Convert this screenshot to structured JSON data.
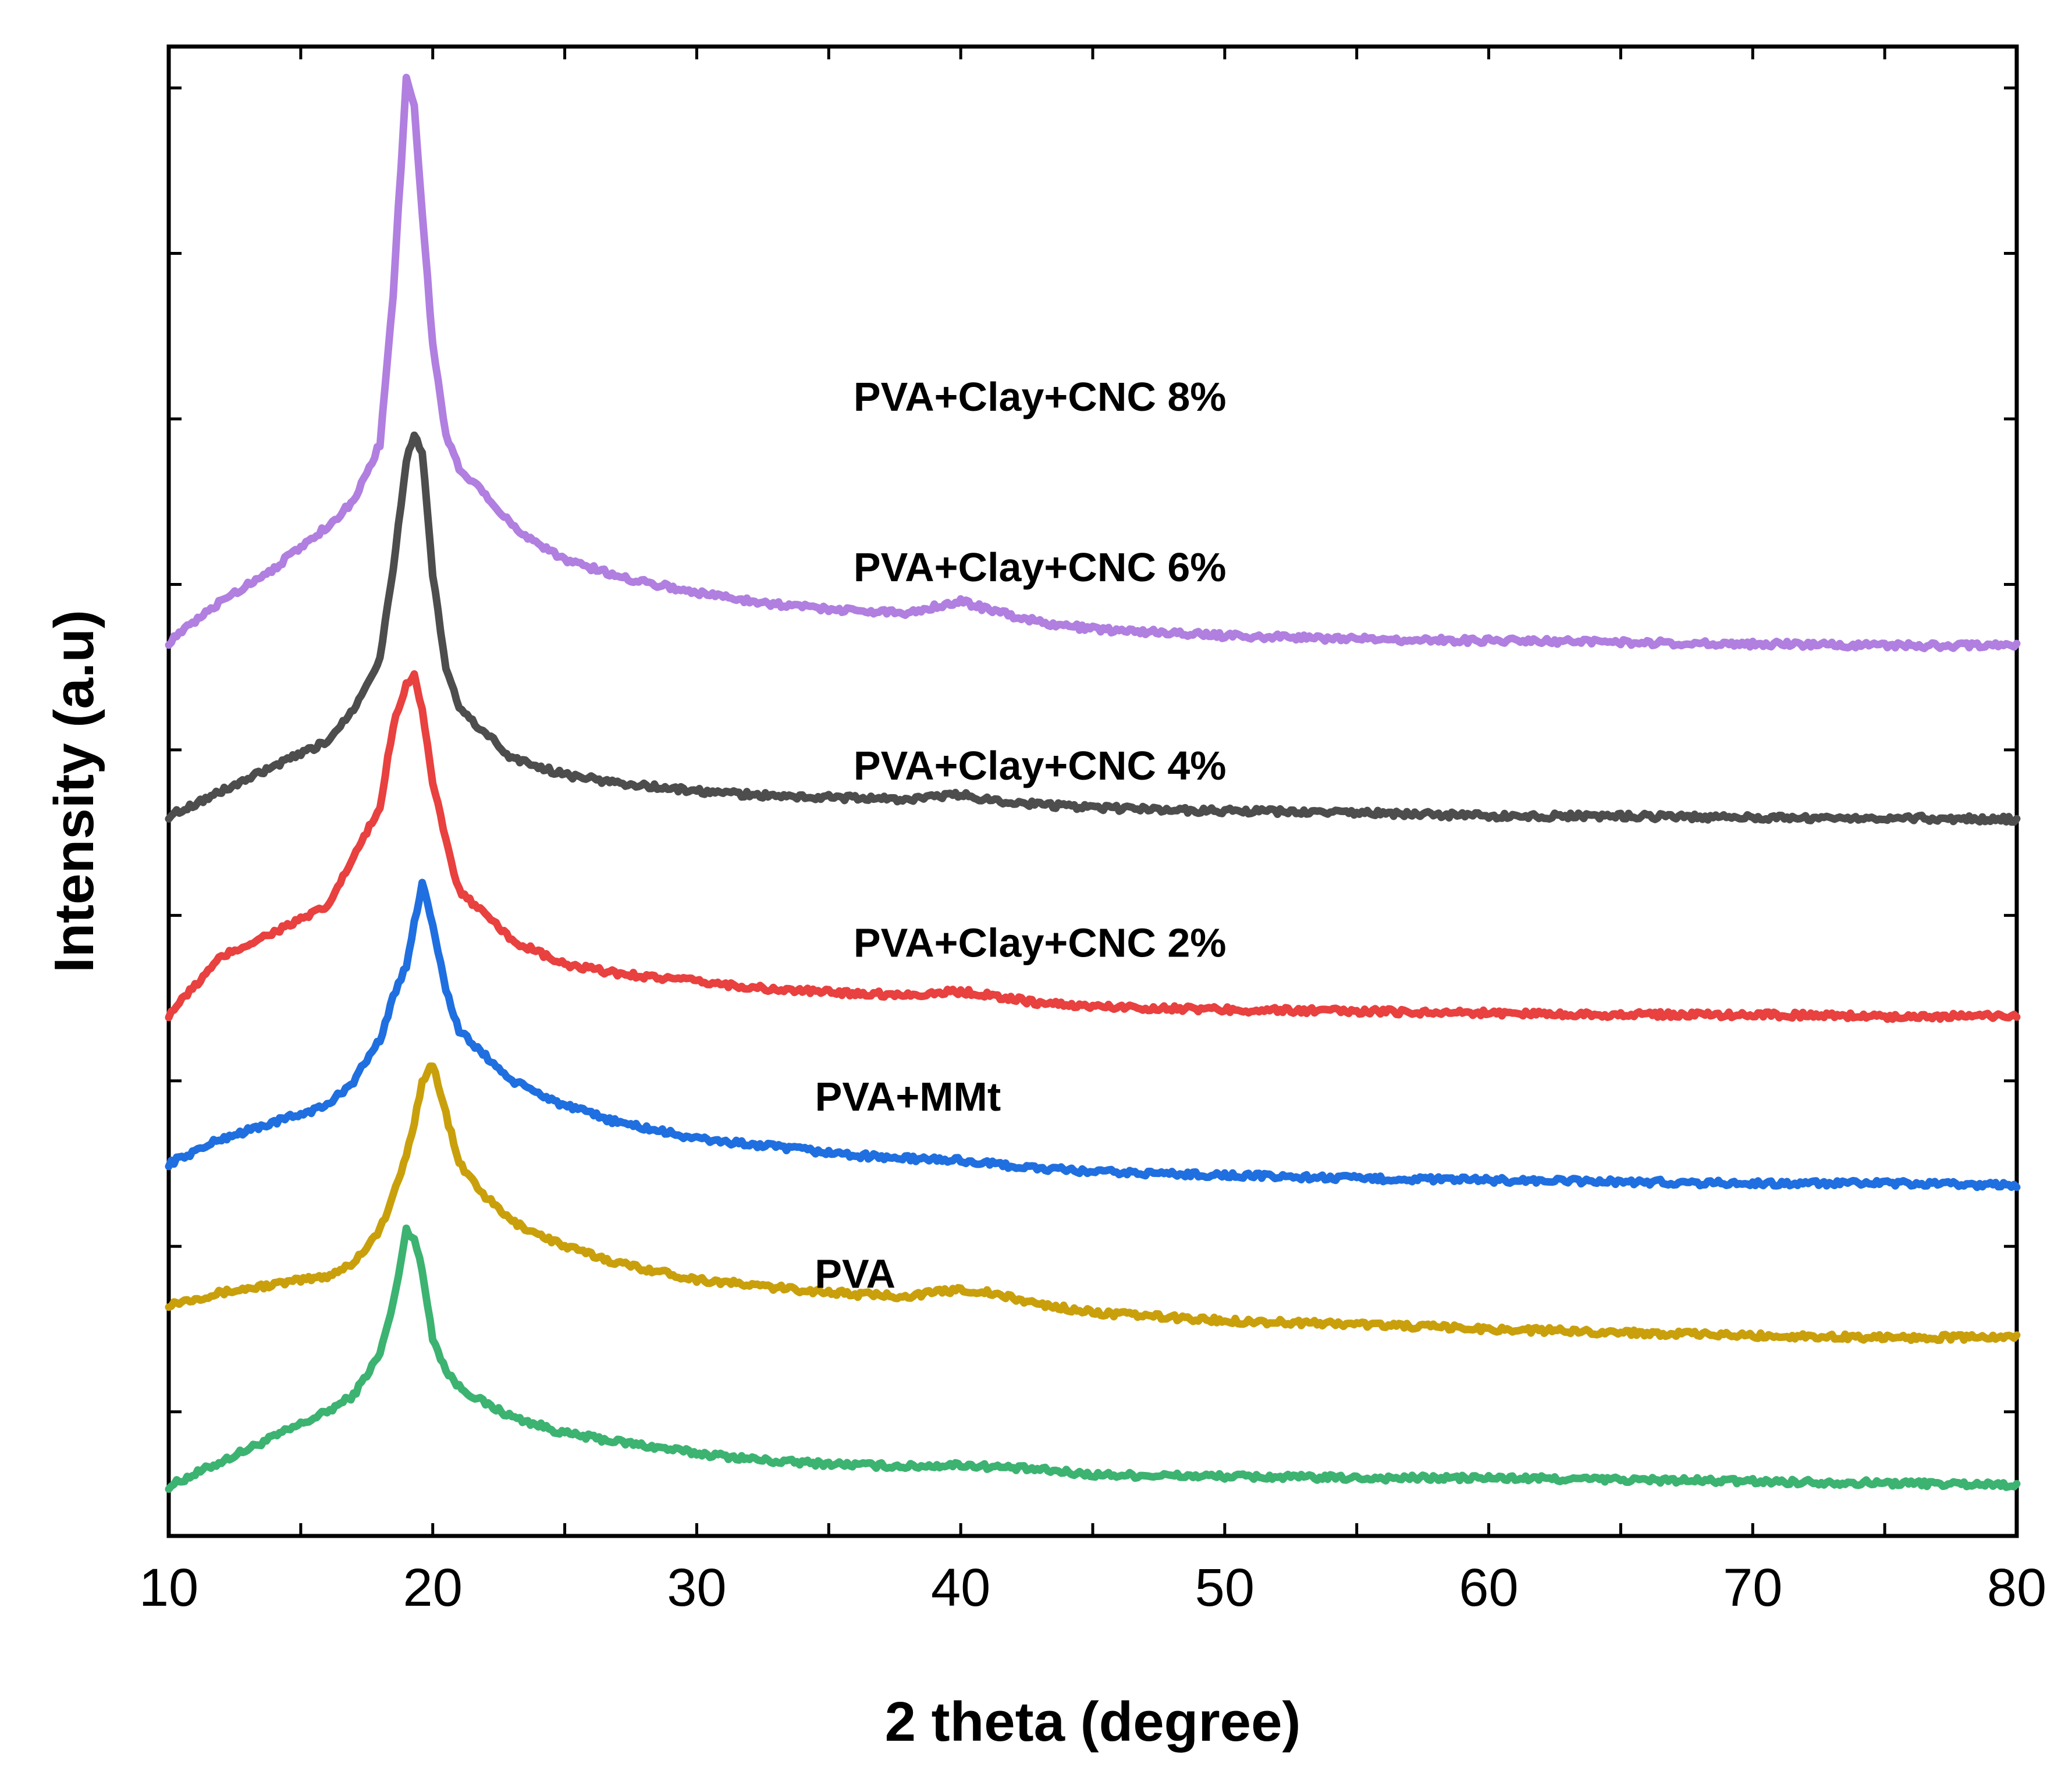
{
  "chart_data": {
    "type": "line",
    "xlabel": "2 theta (degree)",
    "ylabel": "Intensity (a.u)",
    "xlim": [
      10,
      80
    ],
    "ylim": [
      0,
      9
    ],
    "x_ticks": [
      10,
      20,
      30,
      40,
      50,
      60,
      70,
      80
    ],
    "y_minor_ticks": [
      0.75,
      1.75,
      2.75,
      3.75,
      4.75,
      5.75,
      6.75,
      7.75,
      8.75
    ],
    "y_tick_labels_shown": false,
    "x": [
      10,
      12,
      14,
      16,
      17,
      18,
      18.5,
      19,
      19.3,
      19.6,
      20,
      20.5,
      21,
      22,
      23,
      25,
      27,
      30,
      33,
      36,
      38,
      40,
      41,
      43,
      45,
      50,
      55,
      60,
      65,
      70,
      75,
      80
    ],
    "series": [
      {
        "name": "PVA",
        "label": "PVA",
        "color": "#3cb371",
        "values": [
          0.3,
          0.45,
          0.6,
          0.75,
          0.85,
          1.1,
          1.4,
          1.85,
          1.8,
          1.6,
          1.2,
          1.0,
          0.9,
          0.8,
          0.72,
          0.62,
          0.57,
          0.5,
          0.45,
          0.43,
          0.42,
          0.43,
          0.42,
          0.4,
          0.37,
          0.36,
          0.35,
          0.35,
          0.34,
          0.33,
          0.32,
          0.31
        ]
      },
      {
        "name": "PVA+MMt",
        "label": "PVA+MMt",
        "color": "#c9a00c",
        "values": [
          1.4,
          1.47,
          1.52,
          1.57,
          1.65,
          1.85,
          2.05,
          2.3,
          2.5,
          2.75,
          2.85,
          2.55,
          2.25,
          2.05,
          1.9,
          1.75,
          1.65,
          1.55,
          1.5,
          1.46,
          1.45,
          1.49,
          1.47,
          1.4,
          1.35,
          1.3,
          1.28,
          1.25,
          1.23,
          1.21,
          1.2,
          1.2
        ]
      },
      {
        "name": "PVA+Clay+CNC 2%",
        "label": "PVA+Clay+CNC 2%",
        "color": "#1f6fe0",
        "values": [
          2.25,
          2.4,
          2.5,
          2.6,
          2.75,
          3.0,
          3.25,
          3.45,
          3.7,
          3.95,
          3.7,
          3.3,
          3.05,
          2.9,
          2.75,
          2.6,
          2.5,
          2.4,
          2.35,
          2.3,
          2.28,
          2.27,
          2.25,
          2.22,
          2.2,
          2.18,
          2.16,
          2.15,
          2.14,
          2.13,
          2.13,
          2.12
        ]
      },
      {
        "name": "PVA+Clay+CNC 4%",
        "label": "PVA+Clay+CNC 4%",
        "color": "#e8413f",
        "values": [
          3.15,
          3.5,
          3.65,
          3.8,
          4.1,
          4.4,
          4.9,
          5.15,
          5.2,
          5.0,
          4.55,
          4.2,
          3.9,
          3.75,
          3.6,
          3.45,
          3.4,
          3.35,
          3.3,
          3.28,
          3.27,
          3.29,
          3.27,
          3.22,
          3.2,
          3.18,
          3.17,
          3.16,
          3.15,
          3.15,
          3.14,
          3.14
        ]
      },
      {
        "name": "PVA+Clay+CNC 6%",
        "label": "PVA+Clay+CNC 6%",
        "color": "#4d4d4d",
        "values": [
          4.35,
          4.5,
          4.65,
          4.8,
          5.0,
          5.3,
          5.85,
          6.5,
          6.65,
          6.55,
          5.8,
          5.25,
          5.0,
          4.85,
          4.7,
          4.6,
          4.55,
          4.5,
          4.47,
          4.46,
          4.45,
          4.48,
          4.45,
          4.42,
          4.4,
          4.38,
          4.37,
          4.35,
          4.35,
          4.34,
          4.34,
          4.33
        ]
      },
      {
        "name": "PVA+Clay+CNC 8%",
        "label": "PVA+Clay+CNC 8%",
        "color": "#b07fe0",
        "values": [
          5.4,
          5.65,
          5.85,
          6.1,
          6.25,
          6.6,
          7.5,
          8.8,
          8.65,
          8.0,
          7.2,
          6.65,
          6.45,
          6.3,
          6.1,
          5.9,
          5.8,
          5.7,
          5.63,
          5.59,
          5.58,
          5.65,
          5.6,
          5.52,
          5.48,
          5.44,
          5.42,
          5.41,
          5.4,
          5.39,
          5.38,
          5.38
        ]
      }
    ],
    "annotations": [
      {
        "text": "PVA+Clay+CNC 8%",
        "x": 43,
        "y": 6.8
      },
      {
        "text": "PVA+Clay+CNC 6%",
        "x": 43,
        "y": 5.77
      },
      {
        "text": "PVA+Clay+CNC 4%",
        "x": 43,
        "y": 4.57
      },
      {
        "text": "PVA+Clay+CNC 2%",
        "x": 43,
        "y": 3.5
      },
      {
        "text": "PVA+MMt",
        "x": 38,
        "y": 2.57
      },
      {
        "text": "PVA",
        "x": 36,
        "y": 1.5
      }
    ]
  }
}
